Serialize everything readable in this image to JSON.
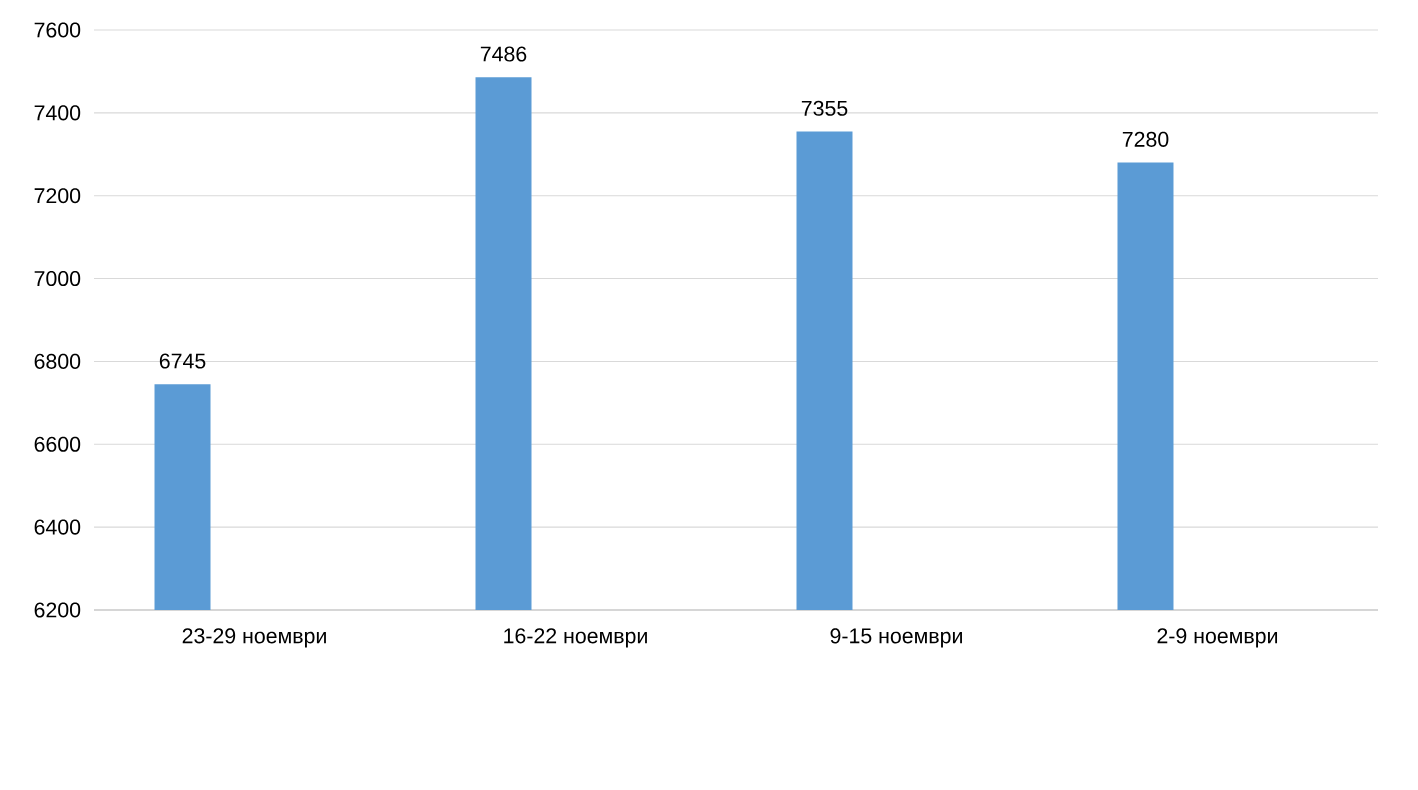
{
  "chart_data": {
    "type": "bar",
    "categories": [
      "23-29 ноември",
      "16-22 ноември",
      "9-15 ноември",
      "2-9 ноември"
    ],
    "values": [
      6745,
      7486,
      7355,
      7280
    ],
    "color": "#5b9bd5",
    "ylim": [
      6200,
      7600
    ],
    "yticks": [
      6200,
      6400,
      6600,
      6800,
      7000,
      7200,
      7400,
      7600
    ],
    "grid": "y",
    "data_labels": true
  }
}
